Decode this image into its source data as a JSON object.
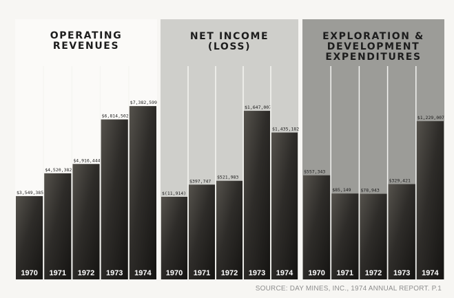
{
  "chart_data": [
    {
      "type": "bar",
      "title_lines": [
        "OPERATING",
        "REVENUES"
      ],
      "categories": [
        "1970",
        "1971",
        "1972",
        "1973",
        "1974"
      ],
      "values": [
        3549385,
        4520382,
        4916444,
        6814502,
        7382599
      ],
      "value_labels": [
        "$3,549,385",
        "$4,520,382",
        "$4,916,444",
        "$6,814,502",
        "$7,382,599"
      ],
      "ylim": [
        0,
        8500000
      ]
    },
    {
      "type": "bar",
      "title_lines": [
        "NET INCOME",
        "(LOSS)"
      ],
      "categories": [
        "1970",
        "1971",
        "1972",
        "1973",
        "1974"
      ],
      "values": [
        -11914,
        397747,
        521983,
        1647007,
        1435182
      ],
      "value_labels": [
        "$(11,914)",
        "$397,747",
        "$521,983",
        "$1,647,007",
        "$1,435,182"
      ],
      "ylim": [
        0,
        1950000
      ]
    },
    {
      "type": "bar",
      "title_lines": [
        "EXPLORATION &",
        "DEVELOPMENT",
        "EXPENDITURES"
      ],
      "categories": [
        "1970",
        "1971",
        "1972",
        "1973",
        "1974"
      ],
      "values": [
        557343,
        85149,
        78943,
        329421,
        1229007
      ],
      "value_labels": [
        "$557,343",
        "$85,149",
        "$78,943",
        "$329,421",
        "$1,229,007"
      ],
      "ylim": [
        0,
        1550000
      ]
    }
  ],
  "footer": {
    "source": "SOURCE: DAY MINES, INC., 1974 ANNUAL REPORT. P.1"
  },
  "colors": {
    "bar_fill": "#2c2b29",
    "bar_divider": "#f5f5f2",
    "label_text": "#ffffff"
  }
}
